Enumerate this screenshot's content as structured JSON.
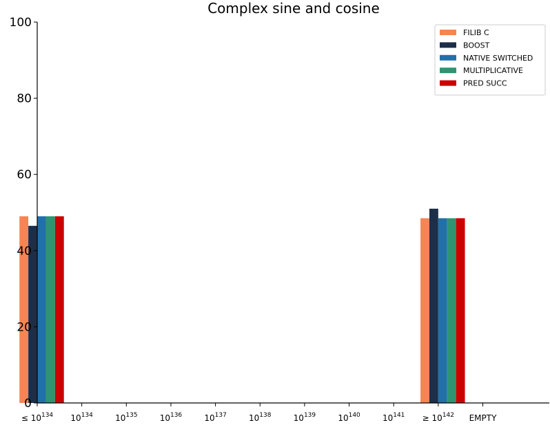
{
  "chart_data": {
    "type": "bar",
    "title": "Complex sine and cosine",
    "xlabel": "",
    "ylabel": "",
    "ylim": [
      0,
      100
    ],
    "yticks": [
      0,
      20,
      40,
      60,
      80,
      100
    ],
    "categories": [
      {
        "prefix": "≤ ",
        "base": "10",
        "exp": "134"
      },
      {
        "prefix": "",
        "base": "10",
        "exp": "134"
      },
      {
        "prefix": "",
        "base": "10",
        "exp": "135"
      },
      {
        "prefix": "",
        "base": "10",
        "exp": "136"
      },
      {
        "prefix": "",
        "base": "10",
        "exp": "137"
      },
      {
        "prefix": "",
        "base": "10",
        "exp": "138"
      },
      {
        "prefix": "",
        "base": "10",
        "exp": "139"
      },
      {
        "prefix": "",
        "base": "10",
        "exp": "140"
      },
      {
        "prefix": "",
        "base": "10",
        "exp": "141"
      },
      {
        "prefix": "≥ ",
        "base": "10",
        "exp": "142"
      },
      {
        "prefix": "",
        "base": "EMPTY",
        "exp": ""
      }
    ],
    "series": [
      {
        "name": "FILIB C",
        "color": "#f58555",
        "values": [
          49,
          0,
          0,
          0,
          0,
          0,
          0,
          0,
          0,
          48.5,
          0
        ]
      },
      {
        "name": "BOOST",
        "color": "#1d2f48",
        "values": [
          46.5,
          0,
          0,
          0,
          0,
          0,
          0,
          0,
          0,
          51,
          0
        ]
      },
      {
        "name": "NATIVE SWITCHED",
        "color": "#2171a8",
        "values": [
          49,
          0,
          0,
          0,
          0,
          0,
          0,
          0,
          0,
          48.5,
          0
        ]
      },
      {
        "name": "MULTIPLICATIVE",
        "color": "#2e9471",
        "values": [
          49,
          0,
          0,
          0,
          0,
          0,
          0,
          0,
          0,
          48.5,
          0
        ]
      },
      {
        "name": "PRED SUCC",
        "color": "#cc0000",
        "values": [
          49,
          0,
          0,
          0,
          0,
          0,
          0,
          0,
          0,
          48.5,
          0
        ]
      }
    ],
    "legend_position": "top-right",
    "grid": false
  }
}
